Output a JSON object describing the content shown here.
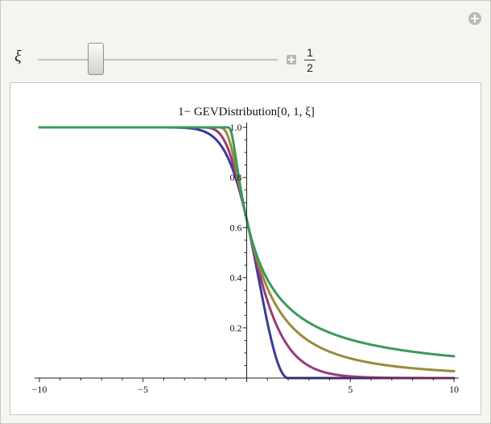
{
  "manipulate": {
    "parameter_label": "ξ",
    "slider_value": 0.5,
    "slider_min": -1,
    "slider_max": 1,
    "value_numerator": "1",
    "value_denominator": "2"
  },
  "chart_data": {
    "type": "line",
    "title": "1− GEVDistribution[0, 1, ξ]",
    "xlabel": "",
    "ylabel": "",
    "xlim": [
      -10,
      10
    ],
    "ylim": [
      0,
      1
    ],
    "x_ticks": [
      "−10",
      "−5",
      "5",
      "10"
    ],
    "y_ticks": [
      "0.2",
      "0.4",
      "0.6",
      "0.8",
      "1.0"
    ],
    "grid": false,
    "series": [
      {
        "color": "#3b3b98",
        "xi": -0.5
      },
      {
        "color": "#9a3a7a",
        "xi": 0.0
      },
      {
        "color": "#9a8a3a",
        "xi": 0.5
      },
      {
        "color": "#3a9a5a",
        "xi": 1.0
      }
    ]
  }
}
